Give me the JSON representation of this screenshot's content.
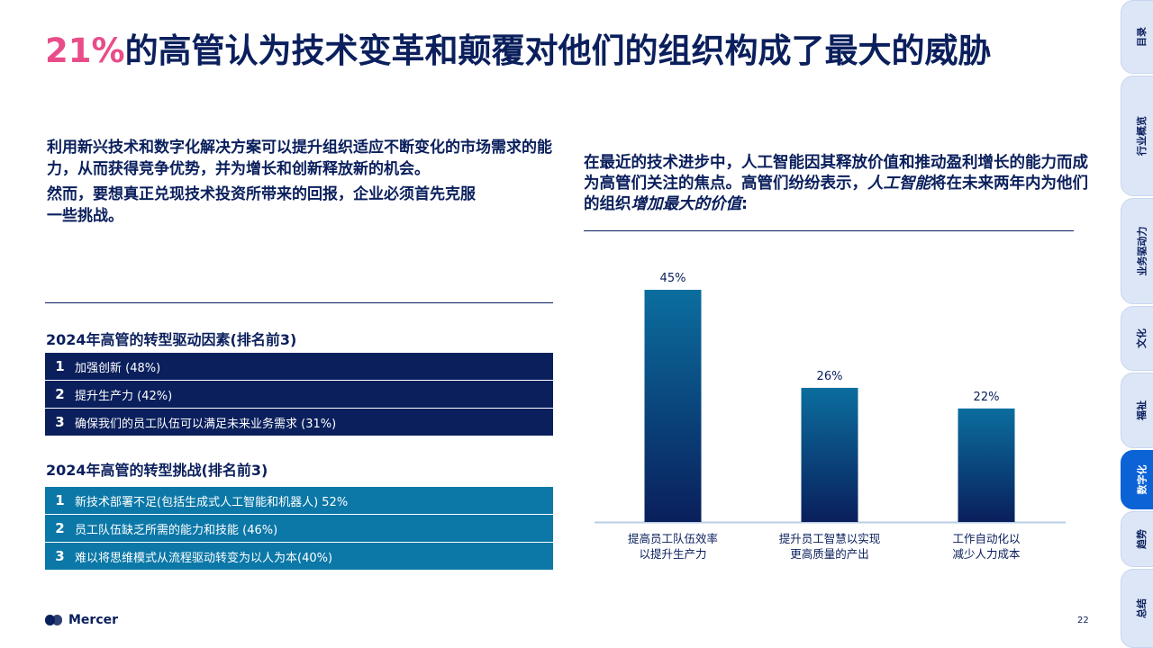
{
  "title": {
    "accent": "21%",
    "rest": "的高管认为技术变革和颠覆对他们的组织构成了最大的威胁"
  },
  "intro": {
    "p1": "利用新兴技术和数字化解决方案可以提升组织适应不断变化的市场需求的能力，从而获得竞争优势，并为增长和创新释放新的机会。",
    "p2": "然而，要想真正兑现技术投资所带来的回报，企业必须首先克服一些挑战。"
  },
  "drivers": {
    "title": "2024年高管的转型驱动因素(排名前3)",
    "items": [
      {
        "rank": "1",
        "text": "加强创新 (48%)"
      },
      {
        "rank": "2",
        "text": "提升生产力 (42%)"
      },
      {
        "rank": "3",
        "text": "确保我们的员工队伍可以满足未来业务需求 (31%)"
      }
    ]
  },
  "challenges": {
    "title": "2024年高管的转型挑战(排名前3)",
    "items": [
      {
        "rank": "1",
        "text": "新技术部署不足(包括生成式人工智能和机器人) 52%"
      },
      {
        "rank": "2",
        "text": "员工队伍缺乏所需的能力和技能 (46%)"
      },
      {
        "rank": "3",
        "text": "难以将思维模式从流程驱动转变为以人为本(40%)"
      }
    ]
  },
  "right_text": {
    "part1": "在最近的技术进步中，人工智能因其释放价值和推动盈利增长的能力而成为高管们关注的焦点。高管们纷纷表示，",
    "em1": "人工智能",
    "part2": "将在未来两年内为他们的组织",
    "em2": "增加最大的价值",
    "part3": ":"
  },
  "chart_data": {
    "type": "bar",
    "categories": [
      [
        "提高员工队伍效率",
        "以提升生产力"
      ],
      [
        "提升员工智慧以实现",
        "更高质量的产出"
      ],
      [
        "工作自动化以",
        "减少人力成本"
      ]
    ],
    "values": [
      45,
      26,
      22
    ],
    "value_labels": [
      "45%",
      "26%",
      "22%"
    ],
    "ylim": [
      0,
      45
    ],
    "colors": {
      "bar_top": "#0b6e9e",
      "bar_bottom": "#0a1f5c",
      "axis": "#b9cde6"
    }
  },
  "footer": {
    "logo": "Mercer",
    "page": "22"
  },
  "side_tabs": [
    {
      "label": "目录",
      "active": false
    },
    {
      "label": "行业概览",
      "active": false
    },
    {
      "label": "业务驱动力",
      "active": false
    },
    {
      "label": "文化",
      "active": false
    },
    {
      "label": "福祉",
      "active": false
    },
    {
      "label": "数字化",
      "active": true
    },
    {
      "label": "趋势",
      "active": false
    },
    {
      "label": "总结",
      "active": false
    }
  ]
}
